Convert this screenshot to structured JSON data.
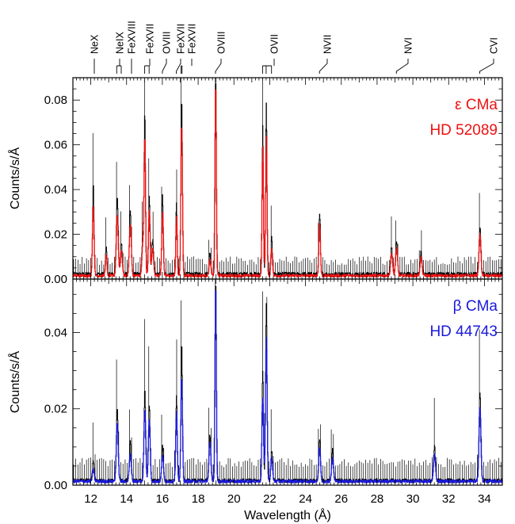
{
  "chart_data": {
    "type": "line",
    "xlabel": "Wavelength (Å)",
    "xlim": [
      11,
      35
    ],
    "xticks": [
      12,
      14,
      16,
      18,
      20,
      22,
      24,
      26,
      28,
      30,
      32,
      34
    ],
    "line_ids": [
      {
        "label": "NeX",
        "wavelength": [
          12.13
        ]
      },
      {
        "label": "NeIX",
        "wavelength": [
          13.45,
          13.7
        ]
      },
      {
        "label": "FeXVIII",
        "wavelength": [
          14.2
        ]
      },
      {
        "label": "FeXVII",
        "wavelength": [
          15.01,
          15.26
        ]
      },
      {
        "label": "OVIII",
        "wavelength": [
          16.0
        ]
      },
      {
        "label": "FeXVII",
        "wavelength": [
          16.78
        ]
      },
      {
        "label": "FeXVII",
        "wavelength": [
          17.05,
          17.1
        ]
      },
      {
        "label": "OVIII",
        "wavelength": [
          18.97
        ]
      },
      {
        "label": "OVII",
        "wavelength": [
          21.6,
          21.8,
          22.1
        ]
      },
      {
        "label": "NVII",
        "wavelength": [
          24.78
        ]
      },
      {
        "label": "NVI",
        "wavelength": [
          29.08
        ]
      },
      {
        "label": "CVI",
        "wavelength": [
          33.74
        ]
      }
    ],
    "panels": [
      {
        "ylabel": "Counts/s/Å",
        "ylim": [
          0,
          0.09
        ],
        "yticks": [
          0.0,
          0.02,
          0.04,
          0.06,
          0.08
        ],
        "ytick_labels": [
          "0.00",
          "0.02",
          "0.04",
          "0.06",
          "0.08"
        ],
        "label_lines": [
          "ε CMa",
          "HD 52089"
        ],
        "color": "#ee1111",
        "series": [
          {
            "kind": "data",
            "color": "#000000",
            "continuum": 0.0022,
            "peaks": [
              [
                12.13,
                0.04,
                0.04
              ],
              [
                12.85,
                0.012,
                0.04
              ],
              [
                13.47,
                0.035,
                0.05
              ],
              [
                13.7,
                0.014,
                0.05
              ],
              [
                14.2,
                0.029,
                0.05
              ],
              [
                14.9,
                0.018,
                0.05
              ],
              [
                15.01,
                0.071,
                0.035
              ],
              [
                15.26,
                0.035,
                0.04
              ],
              [
                15.45,
                0.015,
                0.05
              ],
              [
                16.0,
                0.035,
                0.04
              ],
              [
                16.78,
                0.032,
                0.035
              ],
              [
                17.07,
                0.078,
                0.04
              ],
              [
                18.65,
                0.009,
                0.05
              ],
              [
                18.97,
                0.088,
                0.035
              ],
              [
                21.6,
                0.067,
                0.035
              ],
              [
                21.8,
                0.076,
                0.035
              ],
              [
                22.1,
                0.016,
                0.04
              ],
              [
                24.78,
                0.027,
                0.04
              ],
              [
                28.8,
                0.012,
                0.05
              ],
              [
                29.08,
                0.014,
                0.05
              ],
              [
                30.45,
                0.01,
                0.05
              ],
              [
                33.74,
                0.021,
                0.05
              ]
            ]
          },
          {
            "kind": "model",
            "color": "#ee1111",
            "continuum": 0.0015,
            "peaks": [
              [
                12.13,
                0.031,
                0.045
              ],
              [
                12.85,
                0.009,
                0.045
              ],
              [
                13.47,
                0.027,
                0.055
              ],
              [
                13.7,
                0.011,
                0.055
              ],
              [
                14.2,
                0.023,
                0.055
              ],
              [
                14.9,
                0.014,
                0.05
              ],
              [
                15.01,
                0.061,
                0.04
              ],
              [
                15.26,
                0.029,
                0.045
              ],
              [
                15.45,
                0.012,
                0.055
              ],
              [
                16.0,
                0.028,
                0.045
              ],
              [
                16.78,
                0.026,
                0.04
              ],
              [
                17.07,
                0.067,
                0.045
              ],
              [
                18.65,
                0.007,
                0.05
              ],
              [
                18.97,
                0.085,
                0.04
              ],
              [
                21.6,
                0.057,
                0.04
              ],
              [
                21.8,
                0.062,
                0.04
              ],
              [
                22.1,
                0.012,
                0.045
              ],
              [
                24.78,
                0.023,
                0.045
              ],
              [
                28.8,
                0.01,
                0.055
              ],
              [
                29.08,
                0.012,
                0.055
              ],
              [
                30.45,
                0.008,
                0.055
              ],
              [
                33.74,
                0.018,
                0.055
              ]
            ]
          }
        ]
      },
      {
        "ylabel": "Counts/s/Å",
        "ylim": [
          0,
          0.054
        ],
        "yticks": [
          0.0,
          0.02,
          0.04
        ],
        "ytick_labels": [
          "0.00",
          "0.02",
          "0.04"
        ],
        "label_lines": [
          "β CMa",
          "HD 44743"
        ],
        "color": "#1a1adc",
        "series": [
          {
            "kind": "data",
            "color": "#000000",
            "continuum": 0.0012,
            "peaks": [
              [
                12.13,
                0.005,
                0.05
              ],
              [
                13.47,
                0.019,
                0.05
              ],
              [
                14.2,
                0.01,
                0.05
              ],
              [
                15.01,
                0.024,
                0.045
              ],
              [
                15.26,
                0.02,
                0.045
              ],
              [
                16.0,
                0.009,
                0.045
              ],
              [
                16.78,
                0.022,
                0.04
              ],
              [
                17.07,
                0.036,
                0.04
              ],
              [
                18.65,
                0.012,
                0.05
              ],
              [
                18.97,
                0.053,
                0.035
              ],
              [
                21.6,
                0.029,
                0.04
              ],
              [
                21.8,
                0.046,
                0.04
              ],
              [
                22.1,
                0.008,
                0.045
              ],
              [
                24.78,
                0.011,
                0.045
              ],
              [
                25.5,
                0.008,
                0.05
              ],
              [
                31.2,
                0.009,
                0.05
              ],
              [
                33.74,
                0.023,
                0.05
              ]
            ]
          },
          {
            "kind": "model",
            "color": "#1a1adc",
            "continuum": 0.001,
            "peaks": [
              [
                12.13,
                0.003,
                0.05
              ],
              [
                13.47,
                0.015,
                0.055
              ],
              [
                14.2,
                0.007,
                0.055
              ],
              [
                15.01,
                0.019,
                0.05
              ],
              [
                15.26,
                0.016,
                0.05
              ],
              [
                16.0,
                0.007,
                0.05
              ],
              [
                16.78,
                0.018,
                0.045
              ],
              [
                17.07,
                0.027,
                0.045
              ],
              [
                18.65,
                0.01,
                0.055
              ],
              [
                18.97,
                0.051,
                0.04
              ],
              [
                21.6,
                0.022,
                0.045
              ],
              [
                21.8,
                0.038,
                0.045
              ],
              [
                22.1,
                0.006,
                0.05
              ],
              [
                24.78,
                0.009,
                0.05
              ],
              [
                25.5,
                0.006,
                0.055
              ],
              [
                31.2,
                0.007,
                0.055
              ],
              [
                33.74,
                0.019,
                0.055
              ]
            ]
          }
        ]
      }
    ]
  }
}
